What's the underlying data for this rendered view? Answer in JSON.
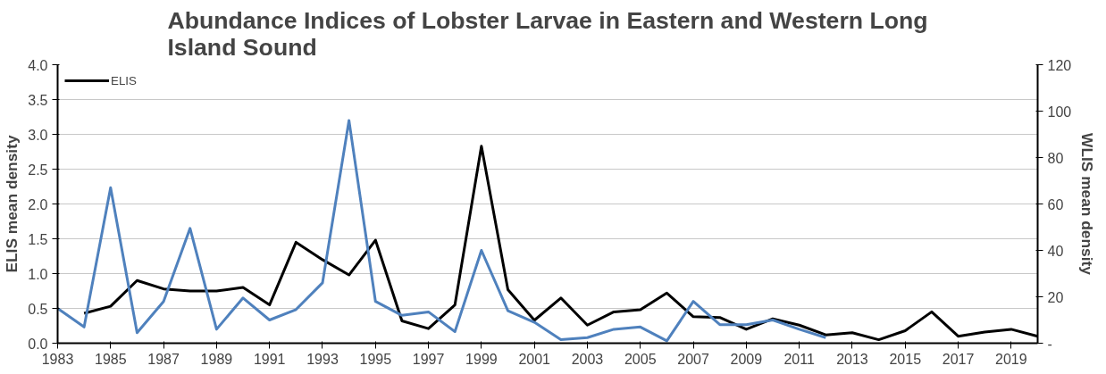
{
  "chart_data": {
    "type": "line",
    "title": "Abundance Indices of Lobster Larvae in Eastern and Western Long\nIsland Sound",
    "ylabel": "ELIS mean density",
    "y2label": "WLIS mean density",
    "x": [
      1983,
      1984,
      1985,
      1986,
      1987,
      1988,
      1989,
      1990,
      1991,
      1992,
      1993,
      1994,
      1995,
      1996,
      1997,
      1998,
      1999,
      2000,
      2001,
      2002,
      2003,
      2004,
      2005,
      2006,
      2007,
      2008,
      2009,
      2010,
      2011,
      2012,
      2013,
      2014,
      2015,
      2016,
      2017,
      2018,
      2019,
      2020
    ],
    "xlim": [
      1983,
      2020
    ],
    "xticks": [
      1983,
      1985,
      1987,
      1989,
      1991,
      1993,
      1995,
      1997,
      1999,
      2001,
      2003,
      2005,
      2007,
      2009,
      2011,
      2013,
      2015,
      2017,
      2019
    ],
    "ylim": [
      0,
      4
    ],
    "yticks": [
      {
        "value": 0,
        "label": "0.0"
      },
      {
        "value": 0.5,
        "label": "0.5"
      },
      {
        "value": 1,
        "label": "1.0"
      },
      {
        "value": 1.5,
        "label": "1.5"
      },
      {
        "value": 2,
        "label": "2.0"
      },
      {
        "value": 2.5,
        "label": "2.5"
      },
      {
        "value": 3,
        "label": "3.0"
      },
      {
        "value": 3.5,
        "label": "3.5"
      },
      {
        "value": 4,
        "label": "4.0"
      }
    ],
    "y2lim": [
      0,
      120
    ],
    "y2ticks": [
      {
        "value": 0,
        "label": "-"
      },
      20,
      40,
      60,
      80,
      100,
      120
    ],
    "grid": "y",
    "legend": "top left",
    "marker": "none",
    "line_style": "solid",
    "series": [
      {
        "name": "ELIS",
        "color": "#000000",
        "values": [
          null,
          0.43,
          0.53,
          0.9,
          0.78,
          0.75,
          0.75,
          0.8,
          0.55,
          1.45,
          1.2,
          0.98,
          1.48,
          0.32,
          0.21,
          0.55,
          2.83,
          0.77,
          0.33,
          0.65,
          0.26,
          0.45,
          0.48,
          0.72,
          0.38,
          0.37,
          0.2,
          0.35,
          0.26,
          0.12,
          0.15,
          0.05,
          0.18,
          0.45,
          0.1,
          0.16,
          0.2,
          0.1
        ]
      },
      {
        "color": "#4f81bd",
        "axis": "y2",
        "values": [
          15,
          7,
          67,
          4.5,
          18,
          49.5,
          6,
          19.5,
          10,
          14.5,
          26,
          96,
          18,
          12,
          13.5,
          5,
          40,
          14,
          9,
          1.5,
          2.4,
          6,
          7,
          1,
          18,
          8,
          8,
          10,
          6,
          2.4,
          null,
          null,
          null,
          null,
          null,
          null,
          null,
          null
        ]
      }
    ]
  }
}
